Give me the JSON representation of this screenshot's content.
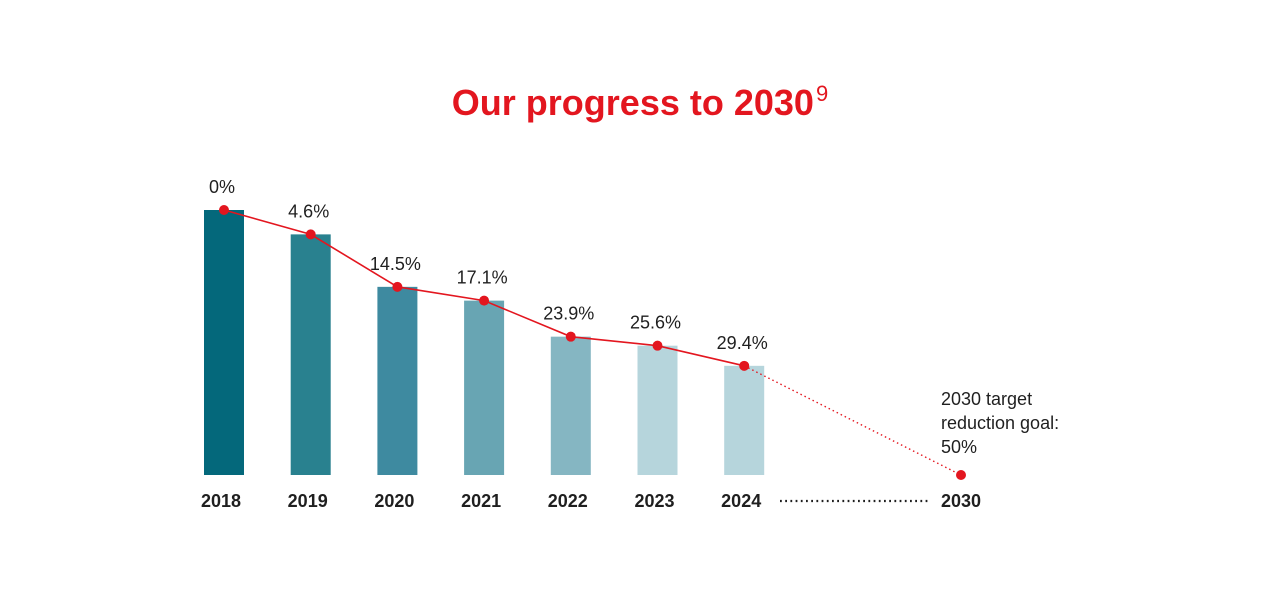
{
  "chart_data": {
    "type": "bar",
    "title": "Our progress to 2030",
    "title_superscript": "9",
    "categories": [
      "2018",
      "2019",
      "2020",
      "2021",
      "2022",
      "2023",
      "2024"
    ],
    "target_category": "2030",
    "series": [
      {
        "values": [
          0,
          4.6,
          14.5,
          17.1,
          23.9,
          25.6,
          29.4
        ],
        "labels": [
          "0%",
          "4.6%",
          "14.5%",
          "17.1%",
          "23.9%",
          "25.6%",
          "29.4%"
        ]
      }
    ],
    "target": {
      "value": 50,
      "annotation": [
        "2030 target",
        "reduction goal:",
        "50%"
      ]
    },
    "value_axis": {
      "reversed": true,
      "range": [
        0,
        50
      ]
    },
    "xlabel": "",
    "ylabel": "",
    "grid": false,
    "legend": "none"
  },
  "colors": {
    "title": "#e3161f",
    "line": "#e3161f",
    "marker": "#e3161f",
    "bars": [
      "#04687b",
      "#29818f",
      "#3e8aa0",
      "#68a5b3",
      "#85b6c2",
      "#b6d5dc",
      "#b6d5dc"
    ],
    "text": "#1f1f1f"
  }
}
